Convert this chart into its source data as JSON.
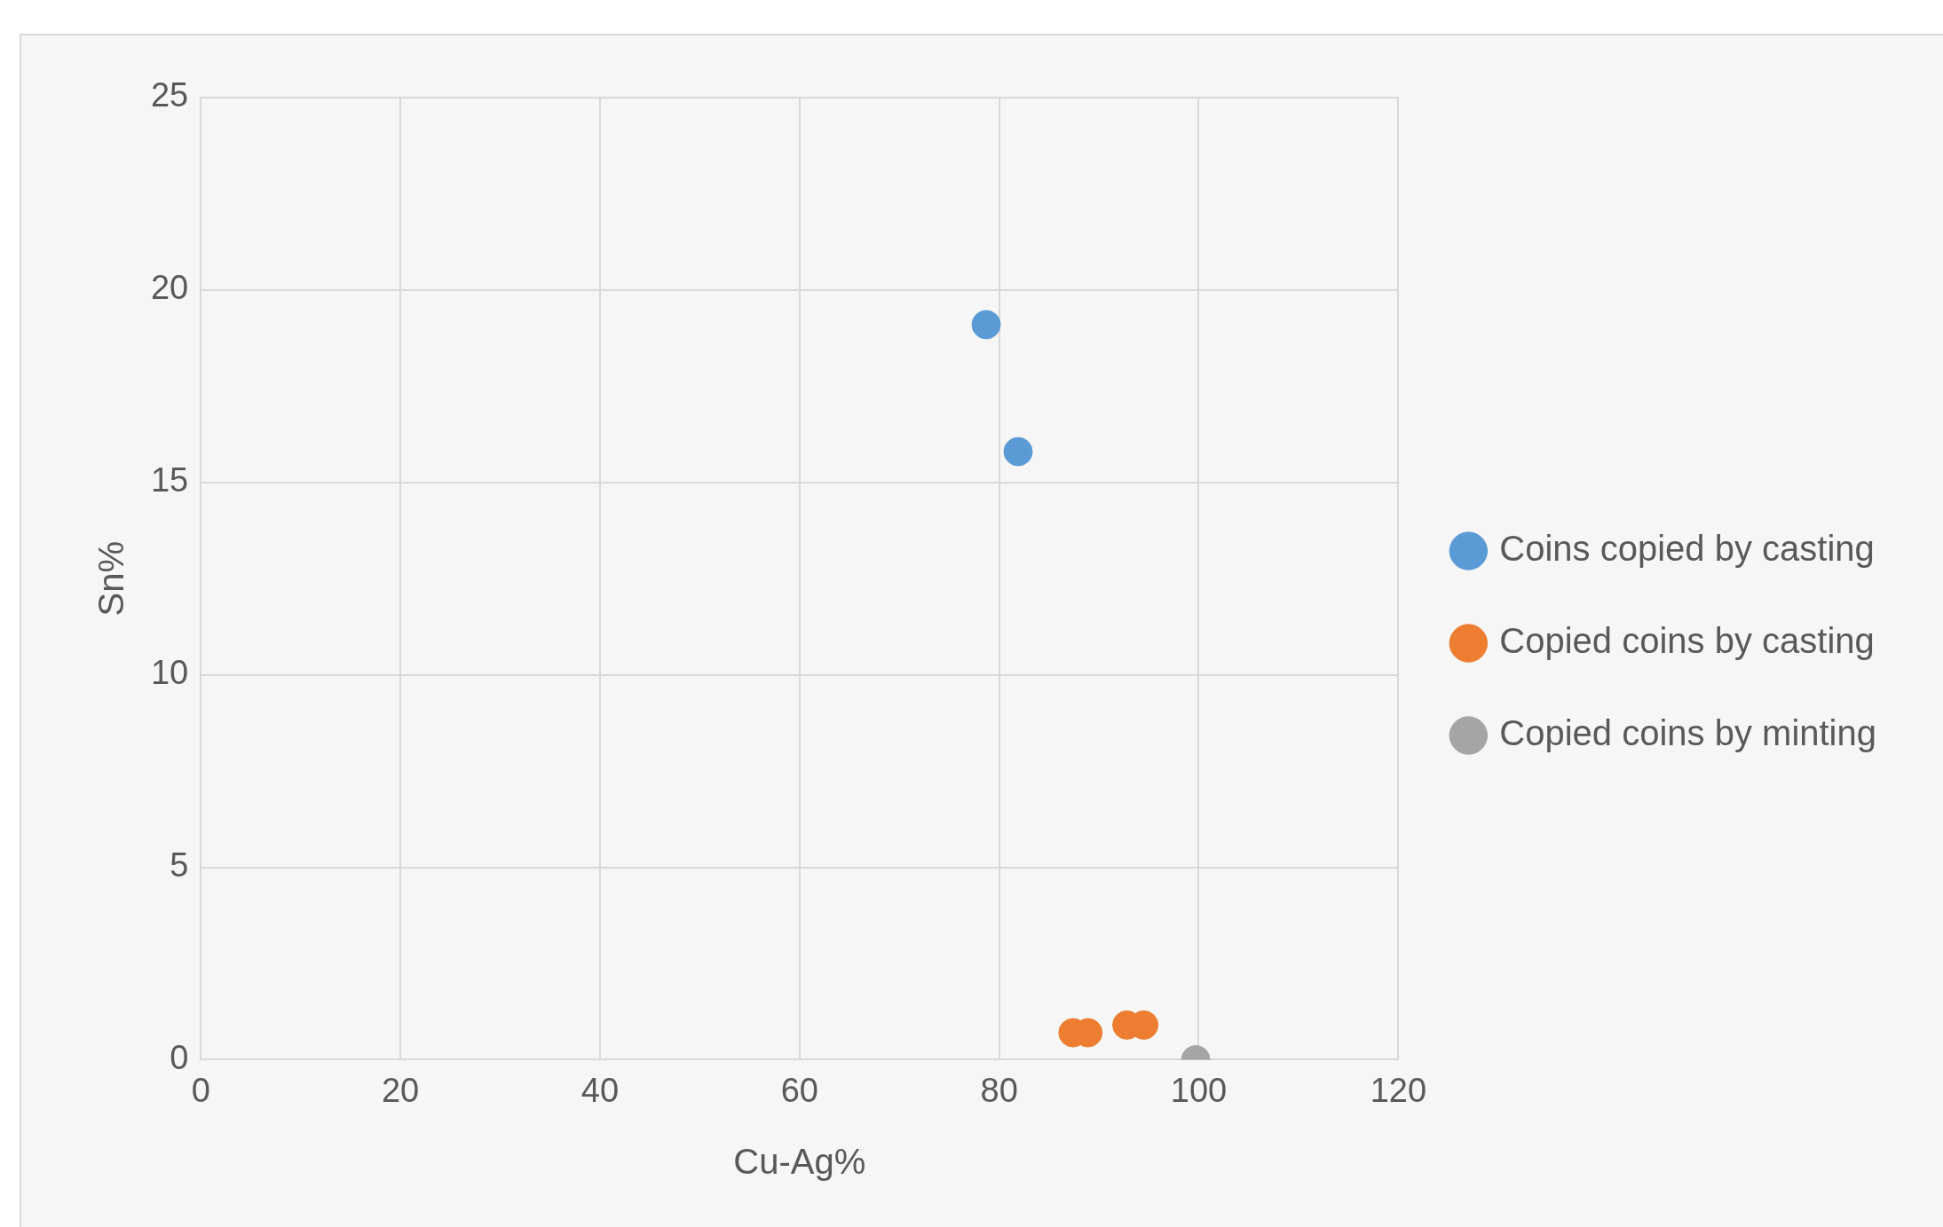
{
  "chart_data": {
    "type": "scatter",
    "xlabel": "Cu-Ag%",
    "ylabel": "Sn%",
    "xlim": [
      0,
      120
    ],
    "xticks": [
      0,
      20,
      40,
      60,
      80,
      100,
      120
    ],
    "ylim": [
      0,
      25
    ],
    "yticks": [
      0,
      5,
      10,
      15,
      20,
      25
    ],
    "grid": true,
    "legend": "right",
    "marker": "circle",
    "series": [
      {
        "name": "Coins copied by casting",
        "color": "#5b9bd5",
        "x": [
          78.7,
          81.9
        ],
        "values": [
          19.1,
          15.8
        ]
      },
      {
        "name": "Copied coins by casting",
        "color": "#ed7d31",
        "x": [
          87.4,
          88.9,
          92.8,
          94.5
        ],
        "values": [
          0.7,
          0.7,
          0.9,
          0.9
        ]
      },
      {
        "name": "Copied coins by minting",
        "color": "#a5a5a5",
        "x": [
          99.7
        ],
        "values": [
          0
        ]
      }
    ]
  }
}
